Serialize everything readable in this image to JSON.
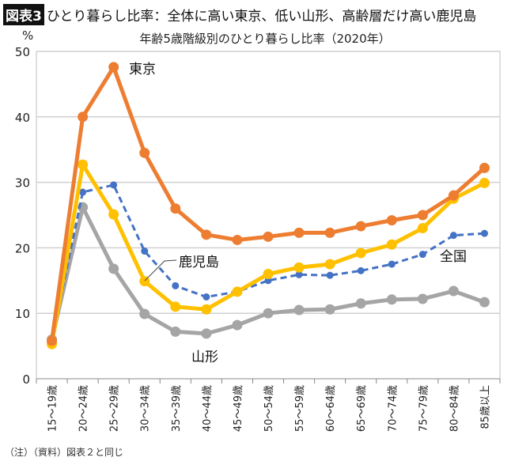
{
  "figure": {
    "badge": "図表3",
    "title": "ひとり暮らし比率：全体に高い東京、低い山形、高齢層だけ高い鹿児島"
  },
  "note": "（注）（資料）図表２と同じ",
  "chart_data": {
    "type": "line",
    "title": "年齢5歳階級別のひとり暮らし比率（2020年）",
    "ylabel": "%",
    "ylim": [
      0,
      50
    ],
    "yticks": [
      0,
      10,
      20,
      30,
      40,
      50
    ],
    "grid": true,
    "categories": [
      "15～19歳",
      "20～24歳",
      "25～29歳",
      "30～34歳",
      "35～39歳",
      "40～44歳",
      "45～49歳",
      "50～54歳",
      "55～59歳",
      "60～64歳",
      "65～69歳",
      "70～74歳",
      "75～79歳",
      "80～84歳",
      "85歳以上"
    ],
    "series": [
      {
        "name": "東京",
        "color": "#ED7D31",
        "dashed": false,
        "values": [
          5.8,
          40.0,
          47.6,
          34.5,
          26.0,
          22.0,
          21.2,
          21.7,
          22.3,
          22.3,
          23.3,
          24.2,
          25.0,
          28.0,
          32.2
        ]
      },
      {
        "name": "鹿児島",
        "color": "#FFC000",
        "dashed": false,
        "values": [
          5.3,
          32.7,
          25.1,
          14.9,
          11.0,
          10.6,
          13.3,
          16.0,
          17.0,
          17.5,
          19.2,
          20.5,
          23.0,
          27.5,
          29.9
        ]
      },
      {
        "name": "全国",
        "color": "#4472C4",
        "dashed": true,
        "values": [
          6.0,
          28.5,
          29.6,
          19.5,
          14.2,
          12.5,
          13.3,
          15.0,
          15.9,
          15.8,
          16.5,
          17.5,
          19.0,
          21.9,
          22.2
        ]
      },
      {
        "name": "山形",
        "color": "#A5A5A5",
        "dashed": false,
        "values": [
          6.0,
          26.2,
          16.8,
          9.9,
          7.2,
          6.9,
          8.2,
          10.0,
          10.5,
          10.6,
          11.5,
          12.1,
          12.2,
          13.4,
          11.7
        ]
      }
    ]
  }
}
